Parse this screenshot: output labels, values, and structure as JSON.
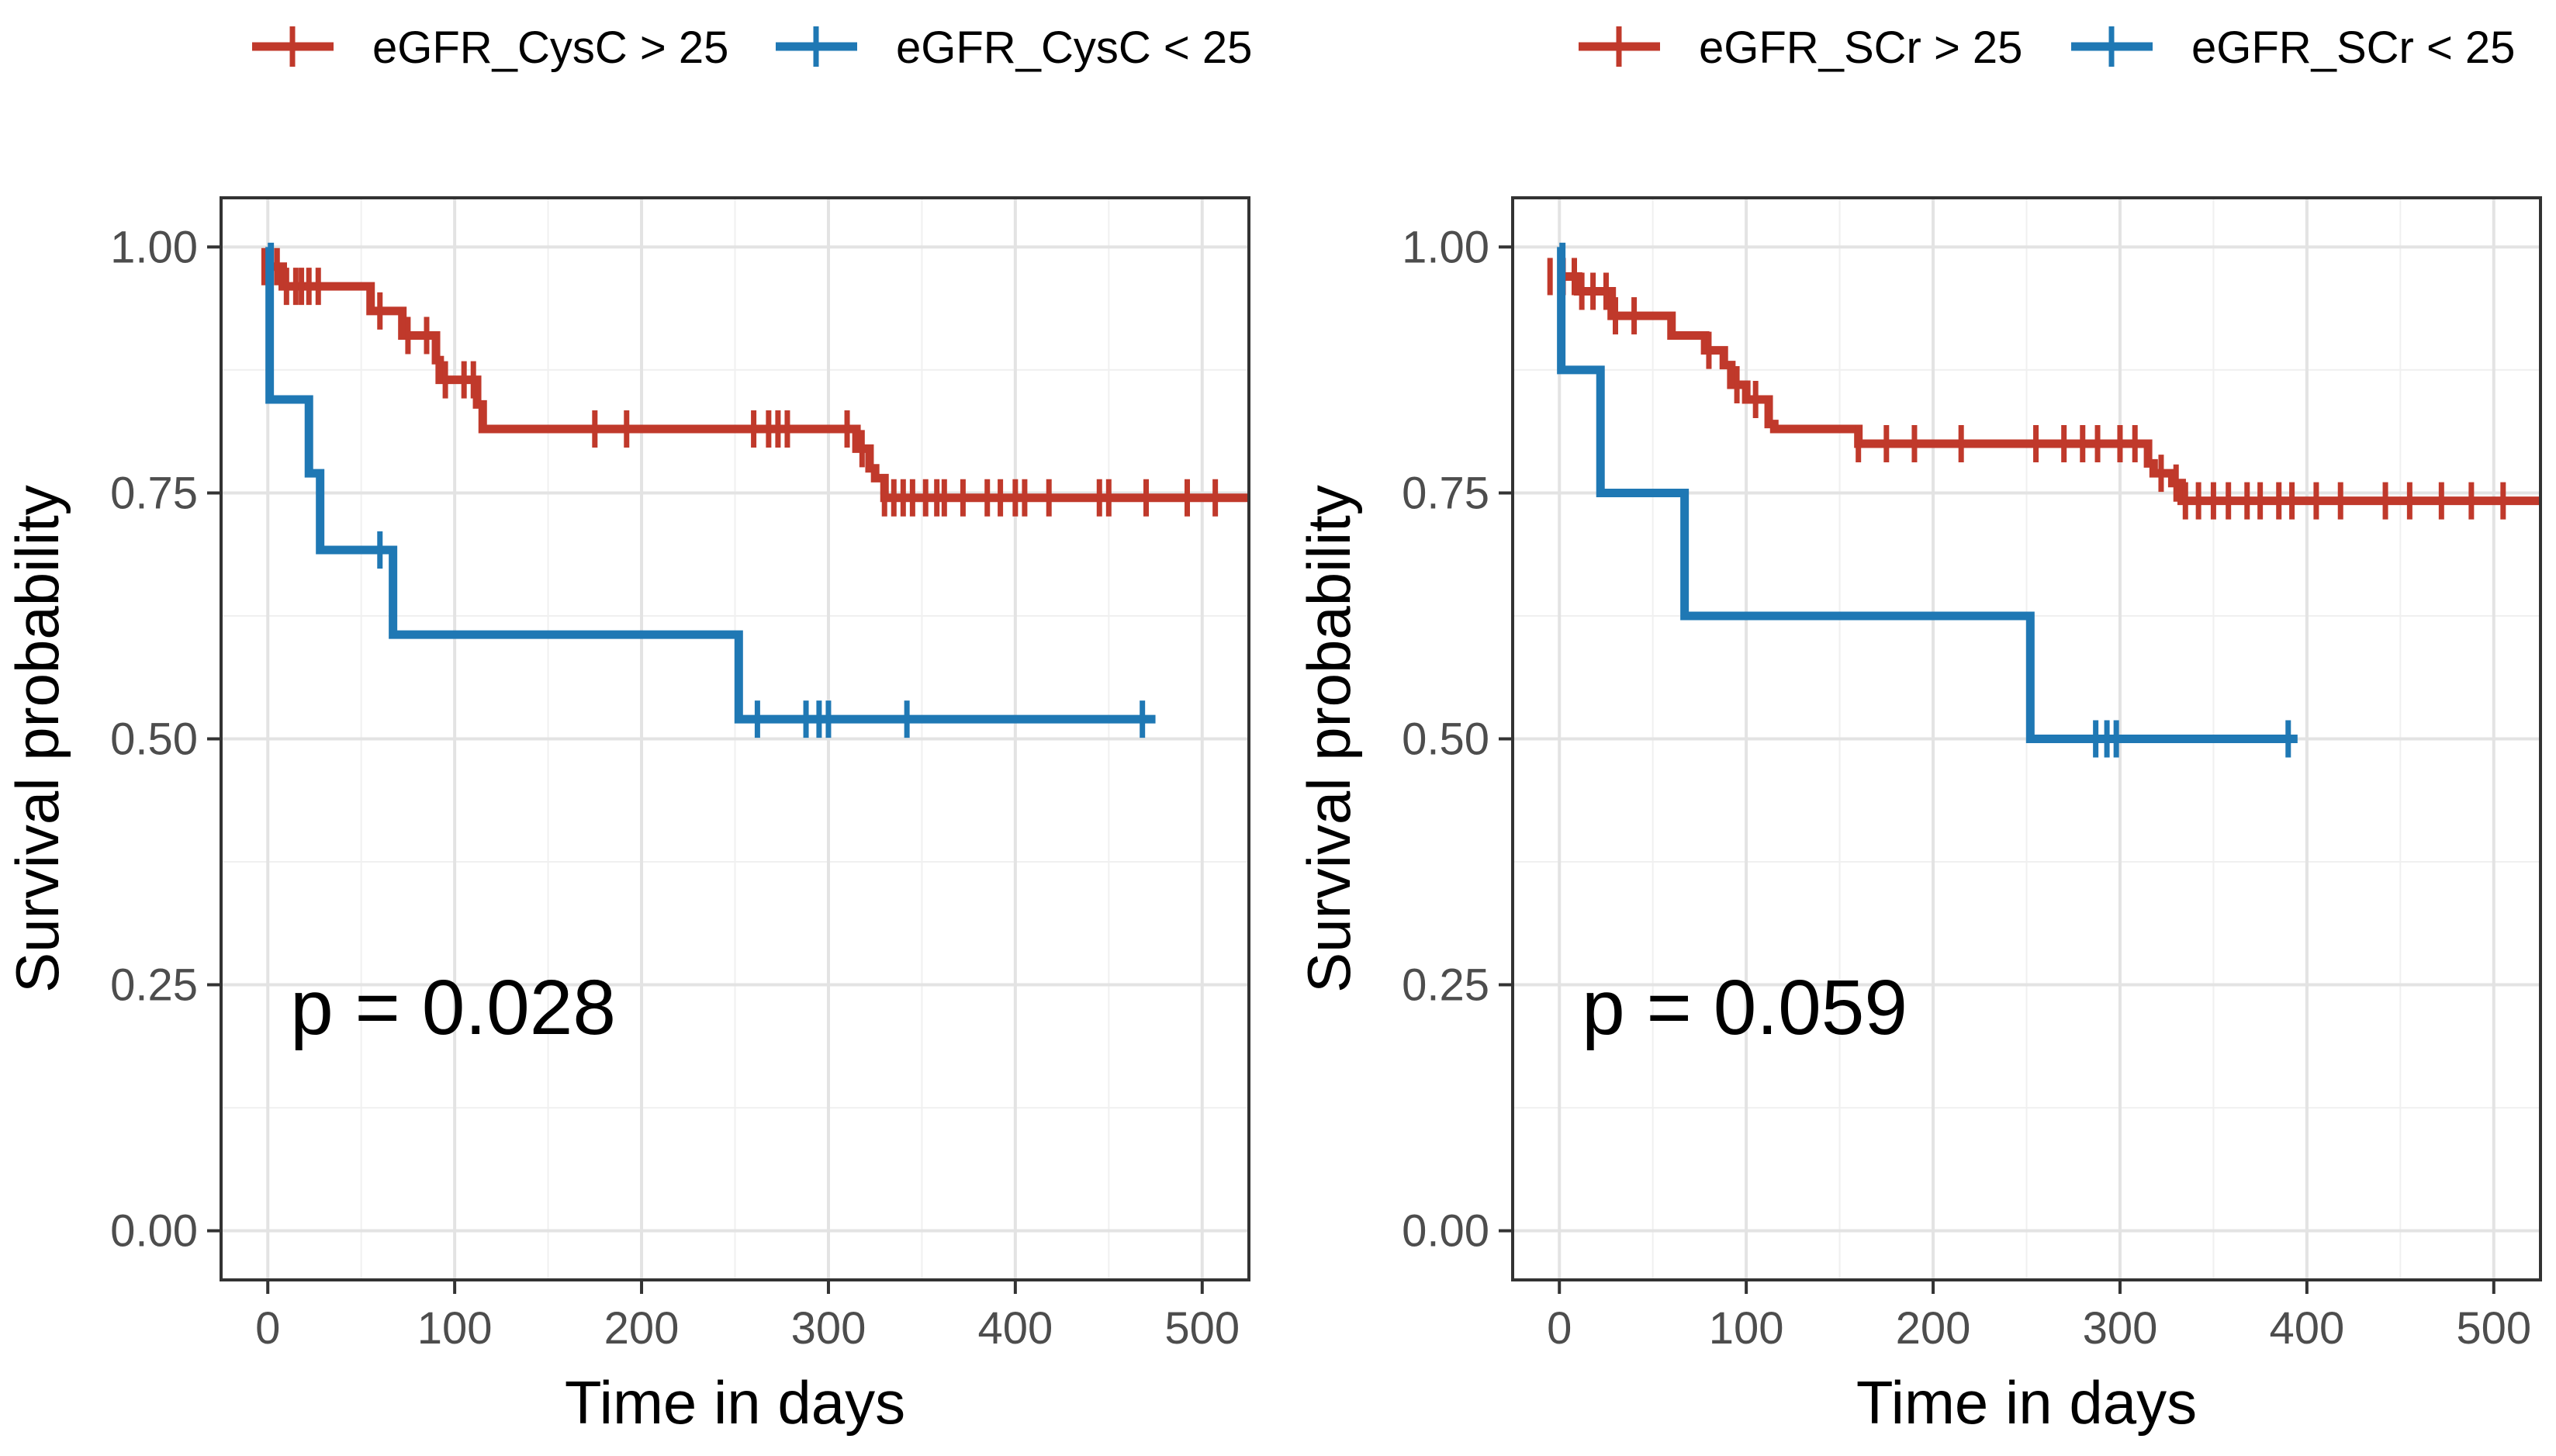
{
  "chart_data": [
    {
      "type": "line",
      "subtype": "kaplan-meier",
      "title": "",
      "xlabel": "Time in days",
      "ylabel": "Survival probability",
      "xlim": [
        -25,
        525
      ],
      "ylim": [
        -0.05,
        1.05
      ],
      "x_ticks": [
        "0",
        "100",
        "200",
        "300",
        "400",
        "500"
      ],
      "x_tick_values": [
        0,
        100,
        200,
        300,
        400,
        500
      ],
      "y_ticks": [
        "0.00",
        "0.25",
        "0.50",
        "0.75",
        "1.00"
      ],
      "y_tick_values": [
        0,
        0.25,
        0.5,
        0.75,
        1.0
      ],
      "grid": true,
      "annotation": "p = 0.028",
      "annotation_pos": [
        12,
        0.2
      ],
      "legend": [
        "eGFR_CysC > 25",
        "eGFR_CysC < 25"
      ],
      "series": [
        {
          "name": "eGFR_CysC > 25",
          "color": "#C0392B",
          "steps": [
            [
              0,
              0.98
            ],
            [
              8,
              0.96
            ],
            [
              55,
              0.935
            ],
            [
              72,
              0.91
            ],
            [
              90,
              0.885
            ],
            [
              92,
              0.865
            ],
            [
              112,
              0.84
            ],
            [
              115,
              0.815
            ],
            [
              315,
              0.795
            ],
            [
              322,
              0.775
            ],
            [
              325,
              0.765
            ],
            [
              330,
              0.745
            ],
            [
              525,
              0.745
            ]
          ],
          "censor": [
            -2,
            2,
            5,
            10,
            15,
            18,
            22,
            27,
            60,
            75,
            85,
            95,
            105,
            110,
            175,
            192,
            260,
            268,
            273,
            278,
            310,
            318,
            330,
            335,
            340,
            345,
            352,
            358,
            362,
            372,
            385,
            392,
            400,
            405,
            418,
            445,
            450,
            470,
            492,
            507
          ]
        },
        {
          "name": "eGFR_CysC < 25",
          "color": "#1F78B4",
          "steps": [
            [
              0,
              1.0
            ],
            [
              1,
              0.845
            ],
            [
              22,
              0.77
            ],
            [
              28,
              0.692
            ],
            [
              67,
              0.606
            ],
            [
              252,
              0.52
            ],
            [
              475,
              0.52
            ]
          ],
          "censor": [
            60,
            262,
            288,
            295,
            300,
            342,
            468
          ]
        }
      ]
    },
    {
      "type": "line",
      "subtype": "kaplan-meier",
      "title": "",
      "xlabel": "Time in days",
      "ylabel": "Survival probability",
      "xlim": [
        -25,
        525
      ],
      "ylim": [
        -0.05,
        1.05
      ],
      "x_ticks": [
        "0",
        "100",
        "200",
        "300",
        "400",
        "500"
      ],
      "x_tick_values": [
        0,
        100,
        200,
        300,
        400,
        500
      ],
      "y_ticks": [
        "0.00",
        "0.25",
        "0.50",
        "0.75",
        "1.00"
      ],
      "y_tick_values": [
        0,
        0.25,
        0.5,
        0.75,
        1.0
      ],
      "grid": true,
      "annotation": "p = 0.059",
      "annotation_pos": [
        12,
        0.2
      ],
      "legend": [
        "eGFR_SCr > 25",
        "eGFR_SCr < 25"
      ],
      "series": [
        {
          "name": "eGFR_SCr > 25",
          "color": "#C0392B",
          "steps": [
            [
              0,
              0.97
            ],
            [
              10,
              0.955
            ],
            [
              28,
              0.93
            ],
            [
              60,
              0.91
            ],
            [
              78,
              0.895
            ],
            [
              88,
              0.88
            ],
            [
              92,
              0.86
            ],
            [
              100,
              0.845
            ],
            [
              112,
              0.82
            ],
            [
              115,
              0.815
            ],
            [
              160,
              0.8
            ],
            [
              315,
              0.78
            ],
            [
              318,
              0.77
            ],
            [
              328,
              0.76
            ],
            [
              333,
              0.742
            ],
            [
              525,
              0.742
            ]
          ],
          "censor": [
            -5,
            2,
            8,
            12,
            18,
            25,
            30,
            40,
            80,
            95,
            105,
            160,
            175,
            190,
            215,
            255,
            270,
            280,
            288,
            300,
            308,
            322,
            330,
            335,
            342,
            350,
            358,
            368,
            375,
            385,
            392,
            405,
            418,
            442,
            455,
            472,
            488,
            505
          ]
        },
        {
          "name": "eGFR_SCr < 25",
          "color": "#1F78B4",
          "steps": [
            [
              0,
              1.0
            ],
            [
              1,
              0.875
            ],
            [
              22,
              0.75
            ],
            [
              67,
              0.625
            ],
            [
              252,
              0.5
            ],
            [
              395,
              0.5
            ]
          ],
          "censor": [
            287,
            293,
            298,
            390
          ]
        }
      ]
    }
  ]
}
